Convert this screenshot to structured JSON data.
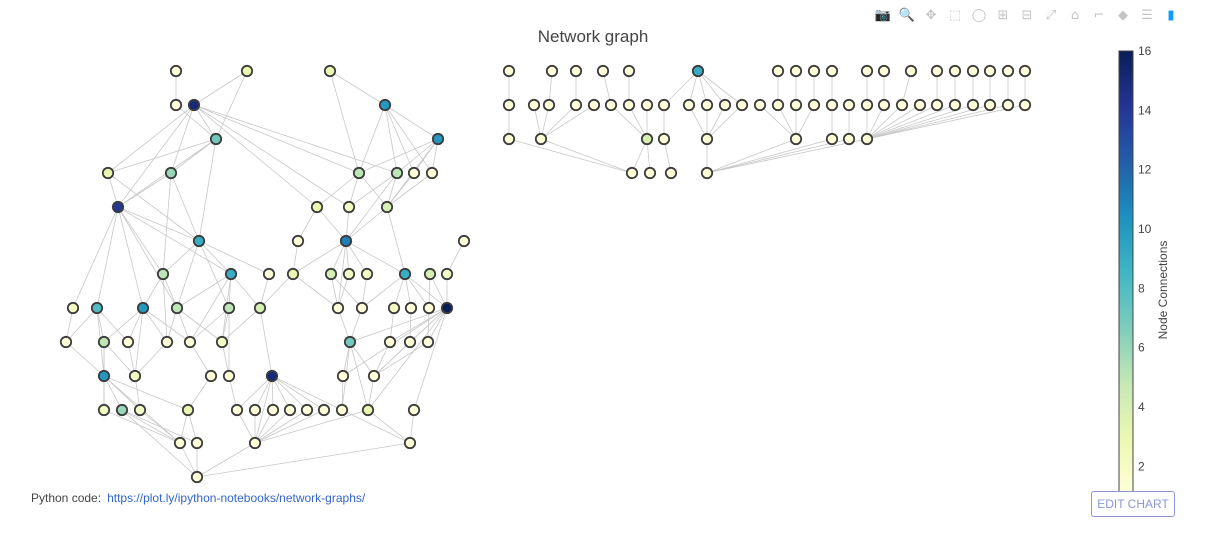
{
  "modebar": {
    "buttons": [
      {
        "name": "camera-icon",
        "glyph": "📷"
      },
      {
        "name": "zoom-icon",
        "glyph": "🔍",
        "active": true
      },
      {
        "name": "pan-icon",
        "glyph": "✥"
      },
      {
        "name": "box-select-icon",
        "glyph": "⬚"
      },
      {
        "name": "lasso-select-icon",
        "glyph": "◯"
      },
      {
        "name": "zoom-in-icon",
        "glyph": "⊞"
      },
      {
        "name": "zoom-out-icon",
        "glyph": "⊟"
      },
      {
        "name": "autoscale-icon",
        "glyph": "⤢"
      },
      {
        "name": "reset-axes-icon",
        "glyph": "⌂"
      },
      {
        "name": "spike-lines-icon",
        "glyph": "⌐"
      },
      {
        "name": "hover-closest-icon",
        "glyph": "◆"
      },
      {
        "name": "hover-compare-icon",
        "glyph": "☰"
      },
      {
        "name": "plotly-logo-icon",
        "glyph": "▮"
      }
    ]
  },
  "chart_data": {
    "type": "network",
    "title": "Network graph",
    "colorbar": {
      "title": "Node Connections",
      "ticks": [
        2,
        4,
        6,
        8,
        10,
        12,
        14,
        16
      ],
      "range": [
        1,
        16
      ],
      "colors": [
        "#ffffd9",
        "#edf8b1",
        "#c7e9b4",
        "#7fcdbb",
        "#41b6c4",
        "#1d91c0",
        "#225ea8",
        "#253494",
        "#081d58"
      ]
    },
    "nodes": [
      [
        176,
        71,
        1
      ],
      [
        247,
        71,
        3
      ],
      [
        330,
        71,
        3
      ],
      [
        176,
        105,
        1
      ],
      [
        194,
        105,
        15
      ],
      [
        385,
        105,
        10
      ],
      [
        216,
        139,
        7
      ],
      [
        438,
        139,
        10
      ],
      [
        108,
        173,
        3
      ],
      [
        171,
        173,
        6
      ],
      [
        359,
        173,
        5
      ],
      [
        397,
        173,
        5
      ],
      [
        414,
        173,
        1
      ],
      [
        432,
        173,
        1
      ],
      [
        118,
        207,
        14
      ],
      [
        317,
        207,
        3
      ],
      [
        349,
        207,
        2
      ],
      [
        387,
        207,
        4
      ],
      [
        199,
        241,
        9
      ],
      [
        298,
        241,
        1
      ],
      [
        346,
        241,
        11
      ],
      [
        464,
        241,
        1
      ],
      [
        163,
        274,
        5
      ],
      [
        231,
        274,
        9
      ],
      [
        269,
        274,
        1
      ],
      [
        293,
        274,
        3
      ],
      [
        331,
        274,
        4
      ],
      [
        349,
        274,
        2
      ],
      [
        367,
        274,
        2
      ],
      [
        405,
        274,
        9
      ],
      [
        430,
        274,
        4
      ],
      [
        447,
        274,
        2
      ],
      [
        73,
        308,
        2
      ],
      [
        97,
        308,
        8
      ],
      [
        143,
        308,
        10
      ],
      [
        177,
        308,
        5
      ],
      [
        229,
        308,
        5
      ],
      [
        260,
        308,
        4
      ],
      [
        338,
        308,
        1
      ],
      [
        362,
        308,
        1
      ],
      [
        394,
        308,
        2
      ],
      [
        411,
        308,
        1
      ],
      [
        429,
        308,
        1
      ],
      [
        447,
        308,
        16
      ],
      [
        66,
        342,
        1
      ],
      [
        104,
        342,
        5
      ],
      [
        128,
        342,
        1
      ],
      [
        167,
        342,
        1
      ],
      [
        190,
        342,
        1
      ],
      [
        222,
        342,
        2
      ],
      [
        350,
        342,
        7
      ],
      [
        390,
        342,
        1
      ],
      [
        410,
        342,
        1
      ],
      [
        428,
        342,
        1
      ],
      [
        104,
        376,
        10
      ],
      [
        135,
        376,
        2
      ],
      [
        211,
        376,
        1
      ],
      [
        229,
        376,
        1
      ],
      [
        272,
        376,
        15
      ],
      [
        343,
        376,
        1
      ],
      [
        374,
        376,
        1
      ],
      [
        104,
        410,
        2
      ],
      [
        122,
        410,
        6
      ],
      [
        140,
        410,
        2
      ],
      [
        188,
        410,
        3
      ],
      [
        237,
        410,
        1
      ],
      [
        255,
        410,
        1
      ],
      [
        273,
        410,
        1
      ],
      [
        290,
        410,
        1
      ],
      [
        307,
        410,
        1
      ],
      [
        324,
        410,
        1
      ],
      [
        342,
        410,
        1
      ],
      [
        368,
        410,
        3
      ],
      [
        414,
        410,
        1
      ],
      [
        180,
        443,
        1
      ],
      [
        197,
        443,
        1
      ],
      [
        255,
        443,
        1
      ],
      [
        410,
        443,
        1
      ],
      [
        197,
        477,
        1
      ],
      [
        509,
        71,
        1
      ],
      [
        552,
        71,
        1
      ],
      [
        576,
        71,
        1
      ],
      [
        603,
        71,
        1
      ],
      [
        629,
        71,
        1
      ],
      [
        698,
        71,
        9
      ],
      [
        778,
        71,
        1
      ],
      [
        796,
        71,
        1
      ],
      [
        814,
        71,
        1
      ],
      [
        832,
        71,
        1
      ],
      [
        867,
        71,
        1
      ],
      [
        884,
        71,
        1
      ],
      [
        911,
        71,
        1
      ],
      [
        937,
        71,
        1
      ],
      [
        955,
        71,
        1
      ],
      [
        973,
        71,
        1
      ],
      [
        990,
        71,
        1
      ],
      [
        1008,
        71,
        1
      ],
      [
        1025,
        71,
        1
      ],
      [
        509,
        105,
        1
      ],
      [
        534,
        105,
        1
      ],
      [
        549,
        105,
        1
      ],
      [
        576,
        105,
        1
      ],
      [
        594,
        105,
        1
      ],
      [
        611,
        105,
        1
      ],
      [
        629,
        105,
        1
      ],
      [
        647,
        105,
        1
      ],
      [
        664,
        105,
        1
      ],
      [
        689,
        105,
        1
      ],
      [
        707,
        105,
        1
      ],
      [
        725,
        105,
        1
      ],
      [
        742,
        105,
        1
      ],
      [
        760,
        105,
        1
      ],
      [
        778,
        105,
        1
      ],
      [
        796,
        105,
        1
      ],
      [
        814,
        105,
        1
      ],
      [
        832,
        105,
        1
      ],
      [
        849,
        105,
        1
      ],
      [
        867,
        105,
        1
      ],
      [
        884,
        105,
        1
      ],
      [
        902,
        105,
        1
      ],
      [
        920,
        105,
        1
      ],
      [
        937,
        105,
        1
      ],
      [
        955,
        105,
        1
      ],
      [
        973,
        105,
        1
      ],
      [
        990,
        105,
        1
      ],
      [
        1008,
        105,
        1
      ],
      [
        1025,
        105,
        1
      ],
      [
        509,
        139,
        1
      ],
      [
        541,
        139,
        1
      ],
      [
        647,
        139,
        4
      ],
      [
        664,
        139,
        1
      ],
      [
        707,
        139,
        1
      ],
      [
        796,
        139,
        1
      ],
      [
        832,
        139,
        1
      ],
      [
        849,
        139,
        1
      ],
      [
        867,
        139,
        1
      ],
      [
        632,
        173,
        1
      ],
      [
        650,
        173,
        1
      ],
      [
        671,
        173,
        1
      ],
      [
        707,
        173,
        1
      ]
    ]
  },
  "footer": {
    "label": "Python code:",
    "link": "https://plot.ly/ipython-notebooks/network-graphs/"
  },
  "edit_chart_label": "EDIT CHART"
}
